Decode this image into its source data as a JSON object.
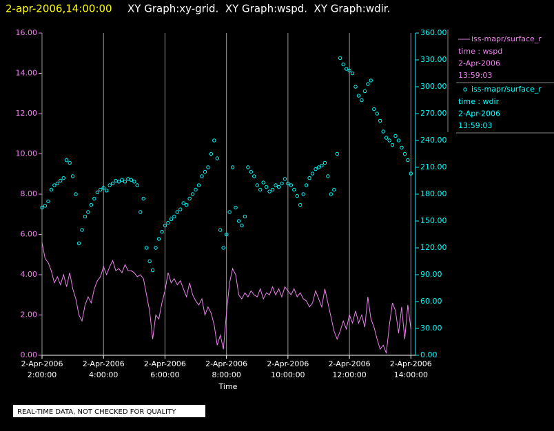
{
  "chart_data": {
    "type": "line",
    "title": "2-apr-2006,14:00:00",
    "subtitle": "XY Graph:xy-grid.  XY Graph:wspd.  XY Graph:wdir.",
    "xlabel": "Time",
    "note": "REAL-TIME DATA, NOT CHECKED FOR QUALITY",
    "grid": true,
    "xlim": [
      2,
      14.15
    ],
    "xticks": [
      {
        "value": 2,
        "label": "2-Apr-2006\n2:00:00"
      },
      {
        "value": 4,
        "label": "2-Apr-2006\n4:00:00"
      },
      {
        "value": 6,
        "label": "2-Apr-2006\n6:00:00"
      },
      {
        "value": 8,
        "label": "2-Apr-2006\n8:00:00"
      },
      {
        "value": 10,
        "label": "2-Apr-2006\n10:00:00"
      },
      {
        "value": 12,
        "label": "2-Apr-2006\n12:00:00"
      },
      {
        "value": 14,
        "label": "2-Apr-2006\n14:00:00"
      }
    ],
    "ylim": [
      0,
      16
    ],
    "yticks": [
      {
        "value": 0,
        "label": "0.00"
      },
      {
        "value": 2,
        "label": "2.00"
      },
      {
        "value": 4,
        "label": "4.00"
      },
      {
        "value": 6,
        "label": "6.00"
      },
      {
        "value": 8,
        "label": "8.00"
      },
      {
        "value": 10,
        "label": "10.00"
      },
      {
        "value": 12,
        "label": "12.00"
      },
      {
        "value": 14,
        "label": "14.00"
      },
      {
        "value": 16,
        "label": "16.00"
      }
    ],
    "y2lim": [
      0,
      360
    ],
    "y2ticks": [
      {
        "value": 0,
        "label": "0.00"
      },
      {
        "value": 30,
        "label": "30.00"
      },
      {
        "value": 60,
        "label": "60.00"
      },
      {
        "value": 90,
        "label": "90.00"
      },
      {
        "value": 120,
        "label": "120.00"
      },
      {
        "value": 150,
        "label": "150.00"
      },
      {
        "value": 180,
        "label": "180.00"
      },
      {
        "value": 210,
        "label": "210.00"
      },
      {
        "value": 240,
        "label": "240.00"
      },
      {
        "value": 270,
        "label": "270.00"
      },
      {
        "value": 300,
        "label": "300.00"
      },
      {
        "value": 330,
        "label": "330.00"
      },
      {
        "value": 360,
        "label": "360.00"
      }
    ],
    "x": [
      2,
      2.1,
      2.2,
      2.3,
      2.4,
      2.5,
      2.6,
      2.7,
      2.8,
      2.9,
      3,
      3.1,
      3.2,
      3.3,
      3.4,
      3.5,
      3.6,
      3.7,
      3.8,
      3.9,
      4,
      4.1,
      4.2,
      4.3,
      4.4,
      4.5,
      4.6,
      4.7,
      4.8,
      4.9,
      5,
      5.1,
      5.2,
      5.3,
      5.4,
      5.5,
      5.6,
      5.7,
      5.8,
      5.9,
      6,
      6.1,
      6.2,
      6.3,
      6.4,
      6.5,
      6.6,
      6.7,
      6.8,
      6.9,
      7,
      7.1,
      7.2,
      7.3,
      7.4,
      7.5,
      7.6,
      7.7,
      7.8,
      7.9,
      8,
      8.1,
      8.2,
      8.3,
      8.4,
      8.5,
      8.6,
      8.7,
      8.8,
      8.9,
      9,
      9.1,
      9.2,
      9.3,
      9.4,
      9.5,
      9.6,
      9.7,
      9.8,
      9.9,
      10,
      10.1,
      10.2,
      10.3,
      10.4,
      10.5,
      10.6,
      10.7,
      10.8,
      10.9,
      11,
      11.1,
      11.2,
      11.3,
      11.4,
      11.5,
      11.6,
      11.7,
      11.8,
      11.9,
      12,
      12.1,
      12.2,
      12.3,
      12.4,
      12.5,
      12.6,
      12.7,
      12.8,
      12.9,
      13,
      13.1,
      13.2,
      13.3,
      13.4,
      13.5,
      13.6,
      13.7,
      13.8,
      13.9,
      14
    ],
    "series": [
      {
        "name": "iss-mapr/surface_r",
        "legend_lines": [
          "time : wspd",
          "2-Apr-2006",
          "13:59:03"
        ],
        "marker": "line",
        "color": "#ee82ee",
        "values": [
          5.6,
          4.8,
          4.6,
          4.2,
          3.6,
          3.9,
          3.5,
          4.0,
          3.4,
          4.1,
          3.3,
          2.8,
          2.0,
          1.7,
          2.5,
          2.9,
          2.6,
          3.3,
          3.7,
          3.9,
          4.4,
          4.0,
          4.4,
          4.7,
          4.2,
          4.3,
          4.1,
          4.5,
          4.2,
          4.2,
          4.1,
          3.9,
          4.0,
          3.8,
          3.0,
          2.2,
          0.8,
          2.0,
          1.8,
          2.6,
          3.2,
          4.1,
          3.6,
          3.8,
          3.5,
          3.7,
          3.3,
          2.9,
          3.6,
          3.0,
          2.7,
          2.5,
          2.8,
          2.0,
          2.4,
          2.1,
          1.5,
          0.5,
          1.0,
          0.3,
          2.1,
          3.6,
          4.3,
          4.0,
          3.0,
          2.8,
          3.1,
          2.9,
          3.2,
          3.0,
          2.9,
          3.3,
          2.8,
          3.1,
          3.0,
          3.4,
          3.0,
          3.3,
          2.9,
          3.4,
          3.2,
          3.0,
          3.3,
          2.9,
          3.1,
          2.8,
          2.7,
          2.4,
          2.6,
          3.2,
          2.8,
          2.4,
          3.3,
          2.6,
          1.9,
          1.2,
          0.8,
          1.2,
          1.7,
          1.3,
          2.0,
          1.6,
          2.2,
          1.6,
          2.0,
          1.4,
          2.9,
          1.8,
          1.4,
          0.8,
          0.3,
          0.5,
          0.1,
          1.5,
          2.6,
          2.2,
          1.1,
          2.4,
          0.8,
          2.5,
          1.3
        ]
      },
      {
        "name": "iss-mapr/surface_r",
        "legend_lines": [
          "time : wdir",
          "2-Apr-2006",
          "13:59:03"
        ],
        "marker": "circle",
        "color": "#00ffff",
        "axis": "y2",
        "values": [
          165,
          167,
          172,
          185,
          190,
          192,
          195,
          198,
          218,
          215,
          200,
          180,
          125,
          140,
          155,
          160,
          168,
          175,
          182,
          185,
          187,
          184,
          190,
          192,
          195,
          194,
          196,
          194,
          197,
          196,
          194,
          190,
          160,
          175,
          120,
          105,
          95,
          120,
          130,
          138,
          145,
          148,
          152,
          155,
          160,
          163,
          170,
          168,
          175,
          180,
          185,
          190,
          200,
          205,
          210,
          225,
          240,
          220,
          140,
          120,
          135,
          160,
          210,
          165,
          150,
          145,
          155,
          210,
          205,
          200,
          190,
          185,
          193,
          188,
          183,
          185,
          190,
          188,
          192,
          197,
          192,
          190,
          185,
          178,
          168,
          180,
          190,
          198,
          203,
          208,
          210,
          212,
          215,
          200,
          180,
          185,
          225,
          332,
          325,
          320,
          318,
          315,
          300,
          290,
          285,
          295,
          303,
          307,
          275,
          270,
          262,
          250,
          243,
          240,
          235,
          245,
          240,
          232,
          225,
          218,
          203
        ]
      }
    ]
  }
}
